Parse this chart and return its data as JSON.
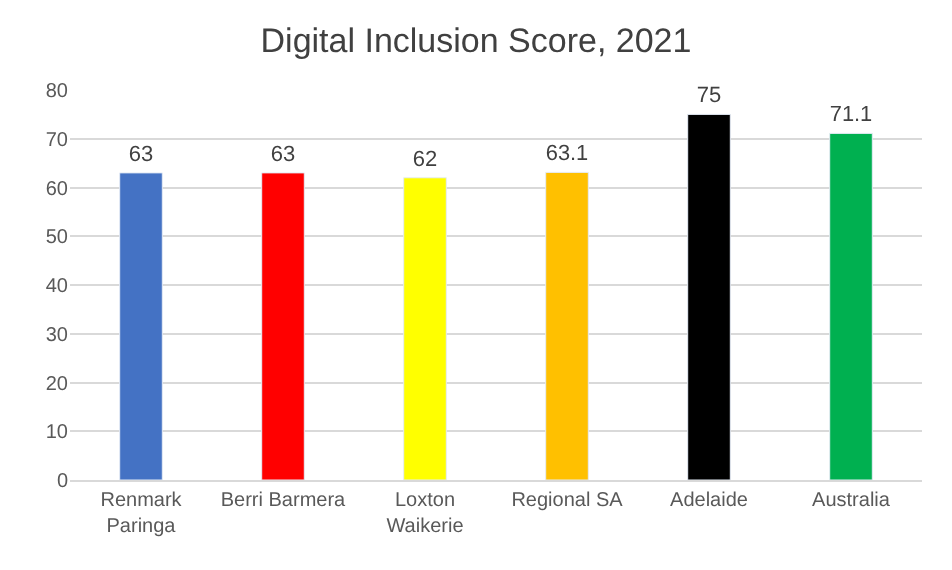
{
  "chart_data": {
    "type": "bar",
    "title": "Digital Inclusion Score, 2021",
    "categories": [
      "Renmark\nParinga",
      "Berri Barmera",
      "Loxton\nWaikerie",
      "Regional SA",
      "Adelaide",
      "Australia"
    ],
    "values": [
      63,
      63,
      62,
      63.1,
      75,
      71.1
    ],
    "colors": [
      "#4472c4",
      "#ff0000",
      "#ffff00",
      "#ffc000",
      "#000000",
      "#00b050"
    ],
    "ylim": [
      0,
      80
    ],
    "yticks": [
      0,
      10,
      20,
      30,
      40,
      50,
      60,
      70,
      80
    ],
    "grid": "y",
    "data_labels": true
  }
}
